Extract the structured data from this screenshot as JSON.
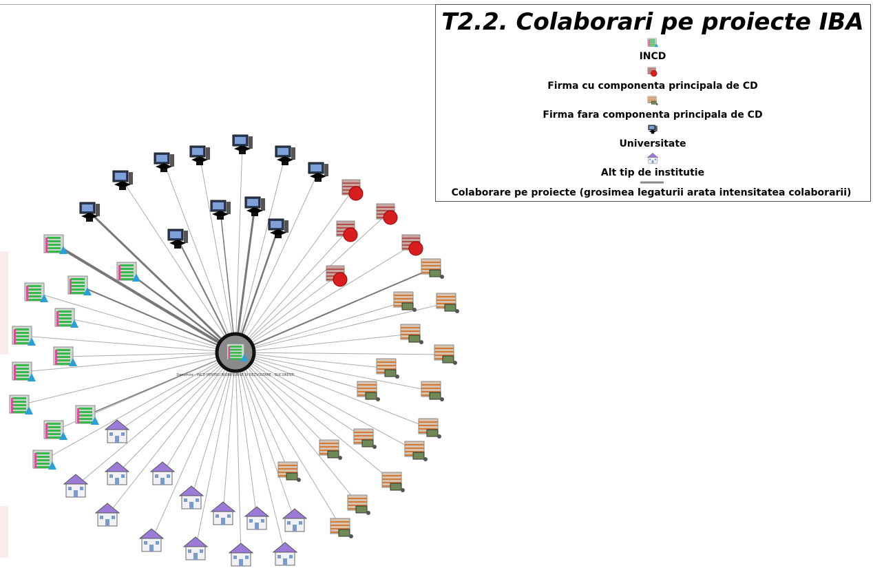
{
  "title": "T2.2. Colaborari pe proiecte IBA",
  "legend": [
    {
      "label": "INCD"
    },
    {
      "label": "Firma cu componenta principala de CD"
    },
    {
      "label": "Firma fara componenta principala de CD"
    },
    {
      "label": "Universitate"
    },
    {
      "label": "Alt tip de institutie"
    },
    {
      "label": "Colaborare pe proiecte (grosimea legaturii arata intensitatea colaborarii)"
    }
  ],
  "center_node": {
    "label": "Denumire : INCD PENTRU BIORESURSE SI DEZVOLTARE - BUCURESTI"
  }
}
